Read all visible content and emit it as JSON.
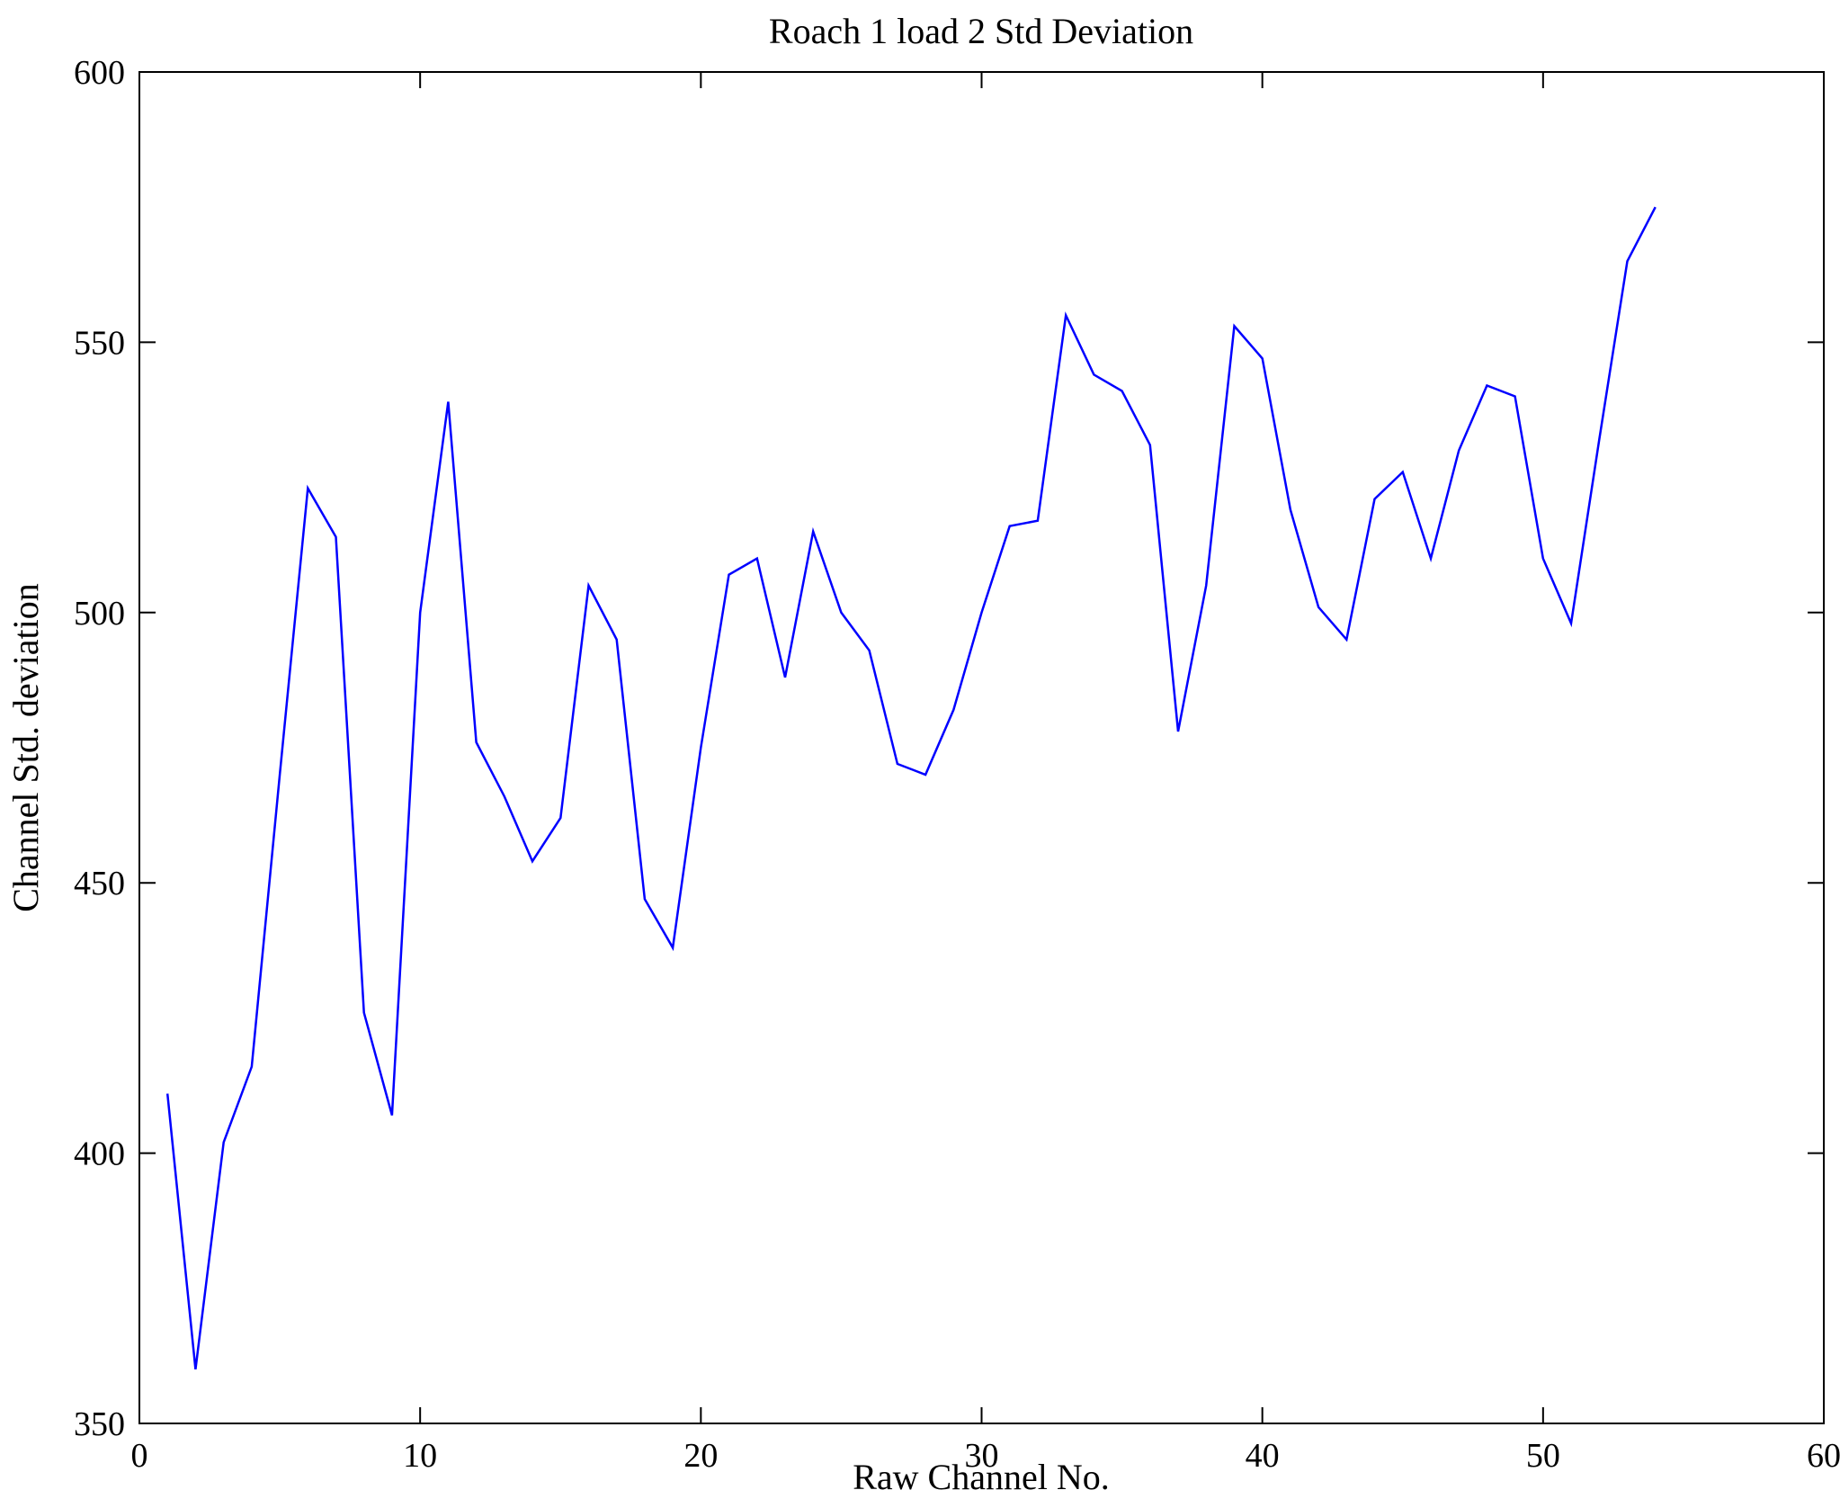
{
  "chart_data": {
    "type": "line",
    "title": "Roach 1 load 2 Std Deviation",
    "xlabel": "Raw Channel No.",
    "ylabel": "Channel Std. deviation",
    "xlim": [
      0,
      60
    ],
    "ylim": [
      350,
      600
    ],
    "xticks": [
      0,
      10,
      20,
      30,
      40,
      50,
      60
    ],
    "yticks": [
      350,
      400,
      450,
      500,
      550,
      600
    ],
    "legend": "none",
    "grid": false,
    "line_color": "#0000ff",
    "axis_color": "#000000",
    "x": [
      1,
      2,
      3,
      4,
      5,
      6,
      7,
      8,
      9,
      10,
      11,
      12,
      13,
      14,
      15,
      16,
      17,
      18,
      19,
      20,
      21,
      22,
      23,
      24,
      25,
      26,
      27,
      28,
      29,
      30,
      31,
      32,
      33,
      34,
      35,
      36,
      37,
      38,
      39,
      40,
      41,
      42,
      43,
      44,
      45,
      46,
      47,
      48,
      49,
      50,
      51,
      52,
      53,
      54
    ],
    "y": [
      411,
      360,
      402,
      416,
      470,
      523,
      514,
      426,
      407,
      500,
      539,
      476,
      466,
      454,
      462,
      505,
      495,
      447,
      438,
      475,
      507,
      510,
      488,
      515,
      500,
      493,
      472,
      470,
      482,
      500,
      516,
      517,
      555,
      544,
      541,
      531,
      478,
      505,
      553,
      547,
      519,
      501,
      495,
      521,
      526,
      510,
      530,
      542,
      540,
      510,
      498,
      532,
      565,
      575
    ]
  }
}
